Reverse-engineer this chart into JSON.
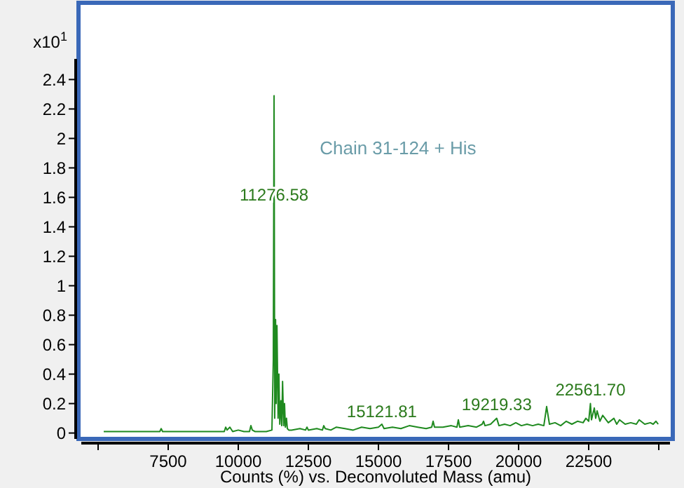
{
  "chart_data": {
    "type": "line",
    "xlabel": "Counts (%) vs. Deconvoluted Mass (amu)",
    "ylabel": "x10$^{1}$",
    "xlim": [
      4400,
      25400
    ],
    "ylim": [
      -0.04,
      2.54
    ],
    "xticks": [
      {
        "value": 5000,
        "label": null
      },
      7500,
      10000,
      12500,
      15000,
      17500,
      20000,
      22500,
      {
        "value": 25000,
        "label": null
      }
    ],
    "yticks": [
      0,
      0.2,
      0.4,
      0.6,
      0.8,
      1,
      1.2,
      1.4,
      1.6,
      1.8,
      2,
      2.2,
      2.4
    ],
    "grid": false,
    "annotations": [
      "Chain 31-124 + His",
      {
        "text": "11276.58",
        "x": 11276.58,
        "y": 1.52
      },
      {
        "text": "15121.81",
        "x": 15121.81,
        "y": 0.05
      },
      {
        "text": "19219.33",
        "x": 19219.33,
        "y": 0.1
      },
      {
        "text": "22561.70",
        "x": 22561.7,
        "y": 0.2
      }
    ],
    "series": [
      {
        "color": "#1f8a1f",
        "x": [
          5200,
          5800,
          6400,
          7000,
          7200,
          7250,
          7300,
          8000,
          8600,
          9200,
          9500,
          9550,
          9600,
          9700,
          9800,
          10000,
          10200,
          10400,
          10450,
          10500,
          10600,
          10800,
          11000,
          11200,
          11250,
          11276.58,
          11300,
          11330,
          11350,
          11380,
          11420,
          11450,
          11480,
          11520,
          11550,
          11580,
          11620,
          11650,
          11680,
          11720,
          11750,
          11800,
          11900,
          12200,
          12400,
          12450,
          12500,
          12800,
          13000,
          13050,
          13100,
          13300,
          13500,
          13800,
          14100,
          14400,
          14700,
          15000,
          15121.81,
          15200,
          15500,
          15800,
          16100,
          16400,
          16700,
          16900,
          16950,
          17000,
          17300,
          17600,
          17800,
          17850,
          17900,
          18200,
          18500,
          18700,
          18750,
          18800,
          19000,
          19219.33,
          19300,
          19500,
          19700,
          19900,
          20100,
          20300,
          20500,
          20700,
          20900,
          21000,
          21100,
          21300,
          21500,
          21700,
          21900,
          22100,
          22300,
          22400,
          22500,
          22561.7,
          22600,
          22700,
          22750,
          22800,
          22900,
          23000,
          23200,
          23400,
          23500,
          23600,
          23800,
          24000,
          24200,
          24300,
          24500,
          24700,
          24800,
          24900,
          24980
        ],
        "values": [
          0.01,
          0.01,
          0.01,
          0.01,
          0.01,
          0.03,
          0.01,
          0.01,
          0.01,
          0.01,
          0.01,
          0.04,
          0.02,
          0.04,
          0.01,
          0.02,
          0.01,
          0.01,
          0.05,
          0.02,
          0.01,
          0.01,
          0.01,
          0.02,
          0.5,
          2.29,
          0.1,
          0.77,
          0.2,
          0.73,
          0.1,
          0.4,
          0.06,
          0.22,
          0.05,
          0.35,
          0.05,
          0.2,
          0.04,
          0.1,
          0.03,
          0.02,
          0.02,
          0.03,
          0.02,
          0.04,
          0.02,
          0.03,
          0.02,
          0.05,
          0.03,
          0.02,
          0.04,
          0.03,
          0.02,
          0.04,
          0.03,
          0.04,
          0.06,
          0.03,
          0.04,
          0.03,
          0.05,
          0.04,
          0.03,
          0.04,
          0.08,
          0.04,
          0.04,
          0.05,
          0.04,
          0.09,
          0.04,
          0.05,
          0.04,
          0.06,
          0.08,
          0.05,
          0.06,
          0.1,
          0.05,
          0.06,
          0.05,
          0.07,
          0.05,
          0.06,
          0.05,
          0.06,
          0.05,
          0.18,
          0.06,
          0.07,
          0.05,
          0.08,
          0.06,
          0.08,
          0.07,
          0.1,
          0.08,
          0.2,
          0.09,
          0.17,
          0.1,
          0.15,
          0.08,
          0.12,
          0.07,
          0.1,
          0.06,
          0.09,
          0.06,
          0.07,
          0.06,
          0.09,
          0.06,
          0.07,
          0.06,
          0.08,
          0.06
        ]
      }
    ]
  }
}
